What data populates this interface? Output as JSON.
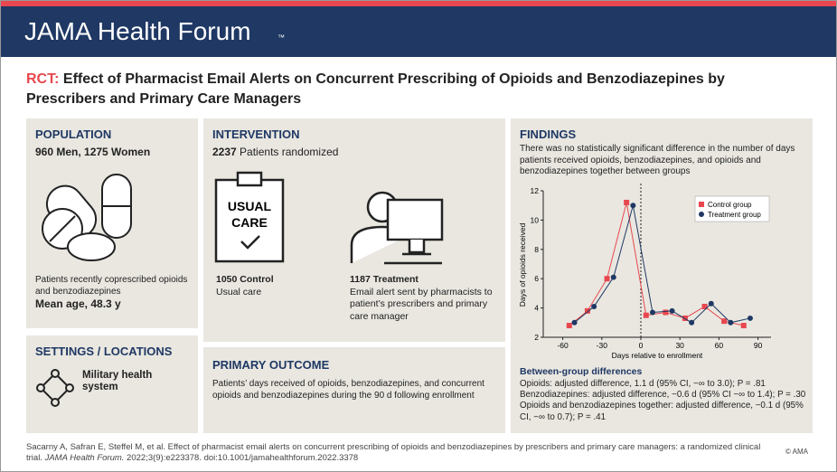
{
  "header": {
    "brand": "JAMA Health Forum",
    "tm": "™"
  },
  "title": {
    "tag": "RCT:",
    "text": "Effect of Pharmacist Email Alerts on Concurrent Prescribing of Opioids and Benzodiazepines by Prescribers and Primary Care Managers"
  },
  "population": {
    "heading": "POPULATION",
    "counts": "960 Men, 1275 Women",
    "description": "Patients recently coprescribed opioids and benzodiazepines",
    "mean_age": "Mean age, 48.3 y"
  },
  "settings": {
    "heading": "SETTINGS / LOCATIONS",
    "text": "Military health system"
  },
  "intervention": {
    "heading": "INTERVENTION",
    "randomized_count": "2237",
    "randomized_text": "Patients randomized",
    "clipboard_text": [
      "USUAL",
      "CARE"
    ],
    "groups": [
      {
        "count": "1050",
        "label": "Control",
        "description": "Usual care"
      },
      {
        "count": "1187",
        "label": "Treatment",
        "description": "Email alert sent by pharmacists to patient’s prescribers and primary care manager"
      }
    ]
  },
  "primary_outcome": {
    "heading": "PRIMARY OUTCOME",
    "text": "Patients’ days received of opioids, benzodiazepines, and concurrent opioids and benzodiazepines during the 90 d following enrollment"
  },
  "findings": {
    "heading": "FINDINGS",
    "summary": "There was no statistically significant difference in the number of days patients received opioids, benzodiazepines, and opioids and benzodiazepines together between groups",
    "differences_heading": "Between-group differences",
    "differences": [
      "Opioids: adjusted difference, 1.1 d (95% CI, −∞ to 3.0); P = .81",
      "Benzodiazepines: adjusted difference, −0.6 d (95% CI −∞ to 1.4); P = .30",
      "Opioids and benzodiazepines together: adjusted difference, −0.1 d (95% CI, −∞ to 0.7); P = .41"
    ]
  },
  "citation": {
    "before": "Sacarny A, Safran E, Steffel M, et al. Effect of pharmacist email alerts on concurrent prescribing of opioids and benzodiazepines by prescribers and primary care managers: a randomized clinical trial. ",
    "journal": "JAMA Health Forum.",
    "after": " 2022;3(9):e223378. doi:10.1001/jamahealthforum.2022.3378",
    "copyright": "© AMA"
  },
  "chart_data": {
    "type": "line",
    "xlabel": "Days relative to enrollment",
    "ylabel": "Days of opioids received",
    "xlim": [
      -75,
      100
    ],
    "xticks": [
      -60,
      -30,
      0,
      30,
      60,
      90
    ],
    "ylim": [
      2,
      12
    ],
    "yticks": [
      2,
      4,
      6,
      8,
      10,
      12
    ],
    "legend": "upper right",
    "series": [
      {
        "name": "Control group",
        "color": "#e8474f",
        "marker": "square",
        "x": [
          -55,
          -41,
          -26,
          -11,
          4,
          19,
          34,
          49,
          64,
          79
        ],
        "values": [
          2.8,
          3.8,
          6.0,
          11.2,
          3.5,
          3.7,
          3.3,
          4.1,
          3.1,
          2.8
        ]
      },
      {
        "name": "Treatment group",
        "color": "#1f3864",
        "marker": "circle",
        "x": [
          -51,
          -36,
          -21,
          -6,
          9,
          24,
          39,
          54,
          69,
          84
        ],
        "values": [
          3.0,
          4.1,
          6.1,
          11.0,
          3.7,
          3.8,
          3.0,
          4.3,
          3.0,
          3.3
        ]
      }
    ]
  }
}
